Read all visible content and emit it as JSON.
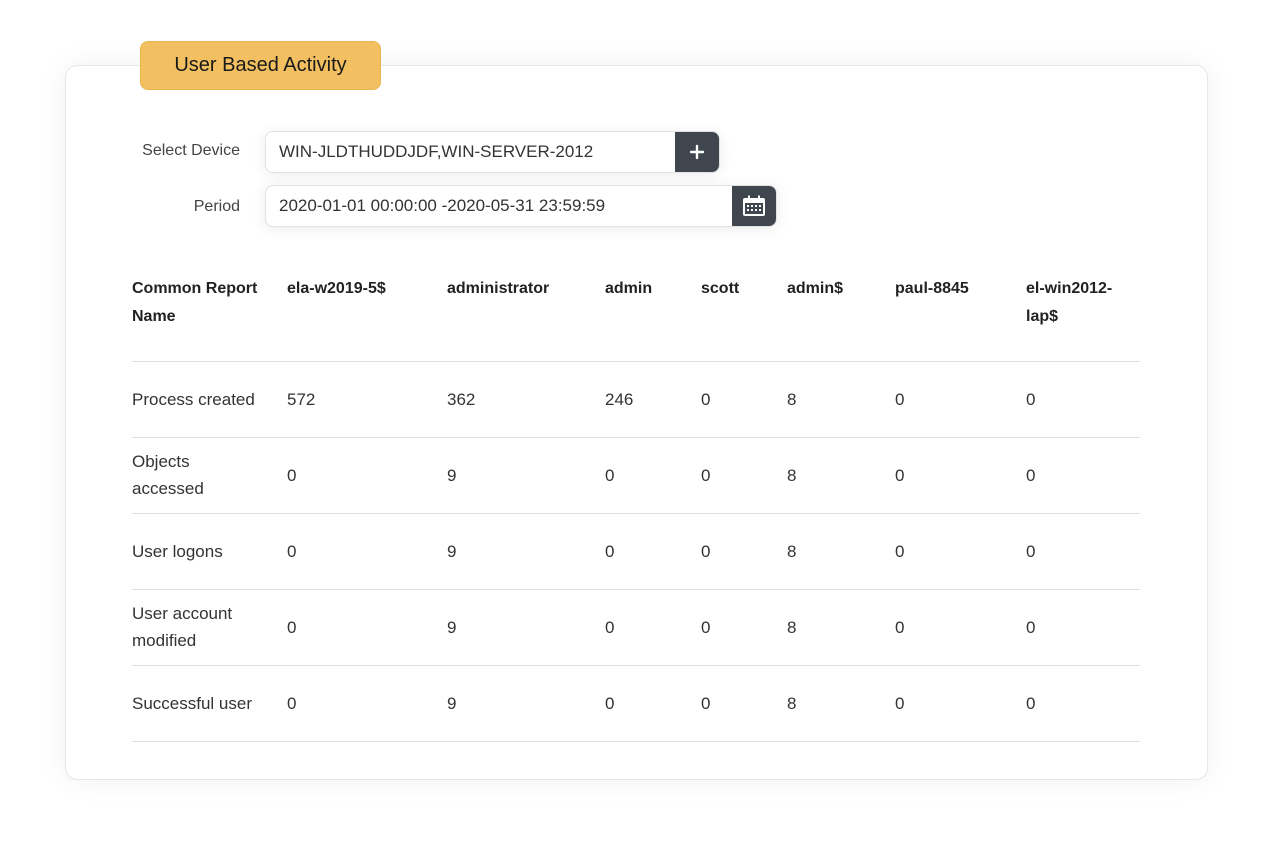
{
  "title": "User Based Activity",
  "filters": {
    "device_label": "Select Device",
    "device_value": "WIN-JLDTHUDDJDF,WIN-SERVER-2012",
    "device_button_icon": "plus-icon",
    "period_label": "Period",
    "period_value": "2020-01-01 00:00:00 -2020-05-31 23:59:59",
    "period_button_icon": "calendar-icon"
  },
  "colors": {
    "badge": "#f2c060",
    "button": "#3f464d"
  },
  "table": {
    "headers": [
      "Common Report Name",
      "ela-w2019-5$",
      "administrator",
      "admin",
      "scott",
      "admin$",
      "paul-8845",
      "el-win2012-lap$"
    ],
    "rows": [
      [
        "Process created",
        "572",
        "362",
        "246",
        "0",
        "8",
        "0",
        "0"
      ],
      [
        "Objects accessed",
        "0",
        "9",
        "0",
        "0",
        "8",
        "0",
        "0"
      ],
      [
        "User logons",
        "0",
        "9",
        "0",
        "0",
        "8",
        "0",
        "0"
      ],
      [
        "User account modified",
        "0",
        "9",
        "0",
        "0",
        "8",
        "0",
        "0"
      ],
      [
        "Successful user",
        "0",
        "9",
        "0",
        "0",
        "8",
        "0",
        "0"
      ]
    ]
  }
}
